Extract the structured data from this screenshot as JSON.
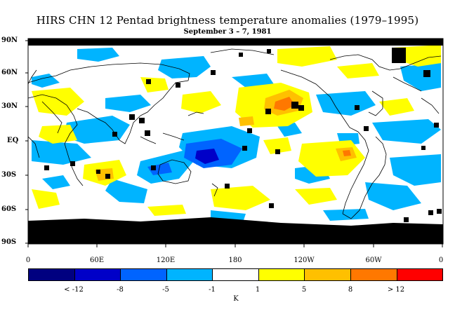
{
  "title": "HIRS CHN 12 Pentad brightness temperature anomalies (1979–1995)",
  "subtitle": "September 3 – 7, 1981",
  "lat_labels": [
    "90N",
    "60N",
    "30N",
    "EQ",
    "30S",
    "60S",
    "90S"
  ],
  "lon_labels": [
    "0",
    "60E",
    "120E",
    "180",
    "120W",
    "60W",
    "0"
  ],
  "colorbar": {
    "colors": [
      "#000080",
      "#0000c8",
      "#0064ff",
      "#00b4ff",
      "#ffffff",
      "#ffff00",
      "#ffc000",
      "#ff7800",
      "#ff0000"
    ],
    "labels": [
      "< -12",
      "-8",
      "-5",
      "-1",
      "1",
      "5",
      "8",
      "> 12"
    ],
    "unit": "K"
  },
  "palette": {
    "light_blue": "#00b4ff",
    "mid_blue": "#0064ff",
    "dark_blue": "#0000c8",
    "yellow": "#ffff00",
    "orange": "#ffc000",
    "dark_orange": "#ff7800",
    "missing": "#000000"
  }
}
